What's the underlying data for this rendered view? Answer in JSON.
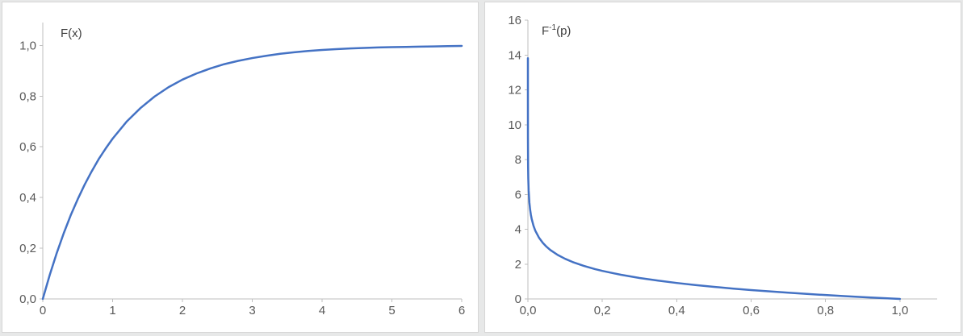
{
  "theme": {
    "page_background": "#e7e8e8",
    "panel_background": "#ffffff",
    "panel_border": "#d6d6d6",
    "axis_color": "#bfbfbf",
    "tick_text_color": "#595959",
    "title_color": "#404040",
    "line_color": "#4472c4"
  },
  "chart_data": [
    {
      "type": "line",
      "title": "F(x)",
      "xlabel": "",
      "ylabel": "",
      "xlim": [
        0,
        6
      ],
      "ylim": [
        0,
        1.09
      ],
      "grid": false,
      "legend": "none",
      "x_ticks": {
        "values": [
          0,
          1,
          2,
          3,
          4,
          5,
          6
        ],
        "labels": [
          "0",
          "1",
          "2",
          "3",
          "4",
          "5",
          "6"
        ]
      },
      "y_ticks": {
        "values": [
          0,
          0.2,
          0.4,
          0.6,
          0.8,
          1.0
        ],
        "labels": [
          "0,0",
          "0,2",
          "0,4",
          "0,6",
          "0,8",
          "1,0"
        ]
      },
      "series": [
        {
          "name": "F(x)",
          "color": "#4472c4",
          "points": [
            [
              0,
              0
            ],
            [
              0.1,
              0.095
            ],
            [
              0.2,
              0.181
            ],
            [
              0.3,
              0.259
            ],
            [
              0.4,
              0.33
            ],
            [
              0.5,
              0.393
            ],
            [
              0.6,
              0.451
            ],
            [
              0.7,
              0.503
            ],
            [
              0.8,
              0.551
            ],
            [
              0.9,
              0.593
            ],
            [
              1,
              0.632
            ],
            [
              1.2,
              0.699
            ],
            [
              1.4,
              0.753
            ],
            [
              1.6,
              0.798
            ],
            [
              1.8,
              0.835
            ],
            [
              2,
              0.865
            ],
            [
              2.2,
              0.889
            ],
            [
              2.4,
              0.909
            ],
            [
              2.6,
              0.926
            ],
            [
              2.8,
              0.939
            ],
            [
              3,
              0.95
            ],
            [
              3.2,
              0.959
            ],
            [
              3.4,
              0.967
            ],
            [
              3.6,
              0.973
            ],
            [
              3.8,
              0.978
            ],
            [
              4,
              0.982
            ],
            [
              4.2,
              0.985
            ],
            [
              4.4,
              0.988
            ],
            [
              4.6,
              0.99
            ],
            [
              4.8,
              0.992
            ],
            [
              5,
              0.993
            ],
            [
              5.2,
              0.994
            ],
            [
              5.4,
              0.995
            ],
            [
              5.6,
              0.996
            ],
            [
              5.8,
              0.997
            ],
            [
              6,
              0.998
            ]
          ]
        }
      ]
    },
    {
      "type": "line",
      "title": "F⁻¹(p)",
      "title_base": "F",
      "title_sup": "-1",
      "title_rest": "(p)",
      "xlabel": "",
      "ylabel": "",
      "xlim": [
        0,
        1.1
      ],
      "ylim": [
        0,
        16
      ],
      "grid": false,
      "legend": "none",
      "x_ticks": {
        "values": [
          0,
          0.2,
          0.4,
          0.6,
          0.8,
          1.0
        ],
        "labels": [
          "0,0",
          "0,2",
          "0,4",
          "0,6",
          "0,8",
          "1,0"
        ]
      },
      "y_ticks": {
        "values": [
          0,
          2,
          4,
          6,
          8,
          10,
          12,
          14,
          16
        ],
        "labels": [
          "0",
          "2",
          "4",
          "6",
          "8",
          "10",
          "12",
          "14",
          "16"
        ]
      },
      "series": [
        {
          "name": "F⁻¹(p)",
          "color": "#4472c4",
          "points": [
            [
              1e-06,
              13.816
            ],
            [
              1e-05,
              11.513
            ],
            [
              0.0001,
              9.21
            ],
            [
              0.0005,
              7.601
            ],
            [
              0.001,
              6.908
            ],
            [
              0.002,
              6.215
            ],
            [
              0.004,
              5.521
            ],
            [
              0.006,
              5.116
            ],
            [
              0.008,
              4.828
            ],
            [
              0.01,
              4.605
            ],
            [
              0.015,
              4.2
            ],
            [
              0.02,
              3.912
            ],
            [
              0.03,
              3.507
            ],
            [
              0.04,
              3.219
            ],
            [
              0.05,
              2.996
            ],
            [
              0.06,
              2.813
            ],
            [
              0.08,
              2.526
            ],
            [
              0.1,
              2.303
            ],
            [
              0.12,
              2.12
            ],
            [
              0.15,
              1.897
            ],
            [
              0.18,
              1.715
            ],
            [
              0.2,
              1.609
            ],
            [
              0.25,
              1.386
            ],
            [
              0.3,
              1.204
            ],
            [
              0.35,
              1.05
            ],
            [
              0.4,
              0.916
            ],
            [
              0.45,
              0.799
            ],
            [
              0.5,
              0.693
            ],
            [
              0.55,
              0.598
            ],
            [
              0.6,
              0.511
            ],
            [
              0.65,
              0.431
            ],
            [
              0.7,
              0.357
            ],
            [
              0.75,
              0.288
            ],
            [
              0.8,
              0.223
            ],
            [
              0.85,
              0.163
            ],
            [
              0.9,
              0.105
            ],
            [
              0.95,
              0.051
            ],
            [
              1,
              0
            ]
          ]
        }
      ]
    }
  ]
}
